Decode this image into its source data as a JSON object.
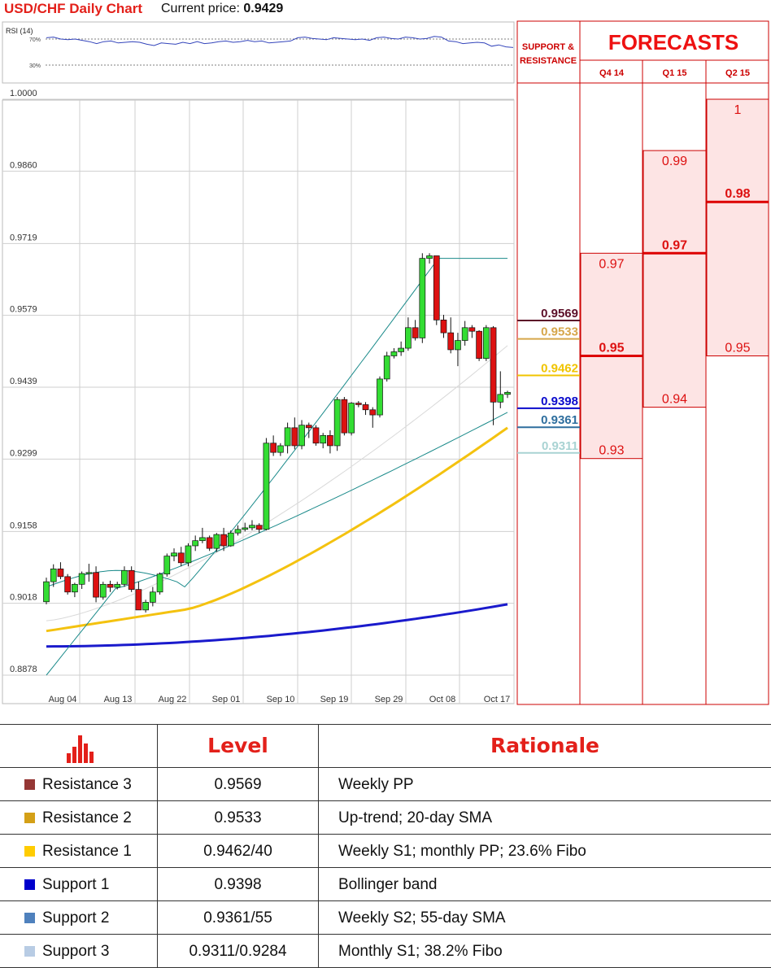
{
  "header": {
    "title": "USD/CHF Daily Chart",
    "price_label": "Current price:",
    "price_value": "0.9429"
  },
  "rsi": {
    "label": "RSI (14)",
    "level_high": "70%",
    "level_low": "30%"
  },
  "chart_data": {
    "type": "candlestick",
    "y_tick_labels": [
      "1.0000",
      "0.9860",
      "0.9719",
      "0.9579",
      "0.9439",
      "0.9299",
      "0.9158",
      "0.9018",
      "0.8878"
    ],
    "x_tick_labels": [
      "Aug 04",
      "Aug 13",
      "Aug 22",
      "Sep 01",
      "Sep 10",
      "Sep 19",
      "Sep 29",
      "Oct 08",
      "Oct 17"
    ],
    "ylim": [
      0.8878,
      1.0
    ],
    "grid": true,
    "candles": [
      [
        0.9021,
        0.9068,
        0.9016,
        0.906
      ],
      [
        0.906,
        0.9094,
        0.905,
        0.9085
      ],
      [
        0.9085,
        0.9098,
        0.9065,
        0.907
      ],
      [
        0.907,
        0.9075,
        0.9035,
        0.904
      ],
      [
        0.904,
        0.9058,
        0.903,
        0.9055
      ],
      [
        0.9055,
        0.908,
        0.9046,
        0.9076
      ],
      [
        0.9076,
        0.9095,
        0.906,
        0.9078
      ],
      [
        0.9078,
        0.909,
        0.902,
        0.903
      ],
      [
        0.903,
        0.906,
        0.9025,
        0.9055
      ],
      [
        0.9055,
        0.9062,
        0.904,
        0.9049
      ],
      [
        0.9049,
        0.906,
        0.9045,
        0.9055
      ],
      [
        0.9055,
        0.909,
        0.905,
        0.9082
      ],
      [
        0.9082,
        0.909,
        0.904,
        0.9045
      ],
      [
        0.9045,
        0.906,
        0.9015,
        0.9005
      ],
      [
        0.9005,
        0.9025,
        0.9,
        0.902
      ],
      [
        0.902,
        0.905,
        0.9012,
        0.904
      ],
      [
        0.904,
        0.9078,
        0.9035,
        0.9075
      ],
      [
        0.9075,
        0.9115,
        0.907,
        0.911
      ],
      [
        0.911,
        0.9125,
        0.91,
        0.9116
      ],
      [
        0.9116,
        0.9128,
        0.909,
        0.9097
      ],
      [
        0.9097,
        0.9135,
        0.909,
        0.913
      ],
      [
        0.913,
        0.915,
        0.912,
        0.914
      ],
      [
        0.914,
        0.9165,
        0.9135,
        0.9146
      ],
      [
        0.9146,
        0.915,
        0.912,
        0.9125
      ],
      [
        0.9125,
        0.9155,
        0.9118,
        0.9152
      ],
      [
        0.9152,
        0.9165,
        0.912,
        0.913
      ],
      [
        0.913,
        0.916,
        0.9128,
        0.9155
      ],
      [
        0.9155,
        0.917,
        0.915,
        0.9162
      ],
      [
        0.9162,
        0.9175,
        0.9158,
        0.9165
      ],
      [
        0.9165,
        0.918,
        0.916,
        0.917
      ],
      [
        0.917,
        0.9174,
        0.9155,
        0.9162
      ],
      [
        0.9162,
        0.934,
        0.916,
        0.933
      ],
      [
        0.933,
        0.9345,
        0.9305,
        0.9312
      ],
      [
        0.9312,
        0.933,
        0.9305,
        0.9325
      ],
      [
        0.9325,
        0.937,
        0.931,
        0.936
      ],
      [
        0.936,
        0.938,
        0.9318,
        0.9325
      ],
      [
        0.9325,
        0.9375,
        0.9318,
        0.9365
      ],
      [
        0.9365,
        0.937,
        0.934,
        0.936
      ],
      [
        0.936,
        0.9365,
        0.9325,
        0.933
      ],
      [
        0.933,
        0.935,
        0.932,
        0.9345
      ],
      [
        0.9345,
        0.9355,
        0.931,
        0.9325
      ],
      [
        0.9325,
        0.942,
        0.9315,
        0.9415
      ],
      [
        0.9415,
        0.942,
        0.9345,
        0.935
      ],
      [
        0.935,
        0.941,
        0.9345,
        0.9408
      ],
      [
        0.9408,
        0.9412,
        0.94,
        0.9405
      ],
      [
        0.9405,
        0.941,
        0.9385,
        0.9395
      ],
      [
        0.9395,
        0.94,
        0.936,
        0.9385
      ],
      [
        0.9385,
        0.946,
        0.938,
        0.9455
      ],
      [
        0.9455,
        0.9508,
        0.945,
        0.95
      ],
      [
        0.95,
        0.9515,
        0.9495,
        0.9508
      ],
      [
        0.9508,
        0.9528,
        0.95,
        0.9515
      ],
      [
        0.9515,
        0.9575,
        0.951,
        0.9555
      ],
      [
        0.9555,
        0.957,
        0.953,
        0.9535
      ],
      [
        0.9535,
        0.97,
        0.9525,
        0.969
      ],
      [
        0.969,
        0.97,
        0.968,
        0.9695
      ],
      [
        0.9695,
        0.9695,
        0.956,
        0.957
      ],
      [
        0.957,
        0.958,
        0.9535,
        0.9545
      ],
      [
        0.9545,
        0.9575,
        0.9505,
        0.9512
      ],
      [
        0.9512,
        0.9545,
        0.948,
        0.953
      ],
      [
        0.953,
        0.9568,
        0.952,
        0.9555
      ],
      [
        0.9555,
        0.956,
        0.9535,
        0.9548
      ],
      [
        0.9548,
        0.955,
        0.949,
        0.9495
      ],
      [
        0.9495,
        0.956,
        0.949,
        0.9555
      ],
      [
        0.9555,
        0.9558,
        0.9365,
        0.941
      ],
      [
        0.941,
        0.947,
        0.9398,
        0.9425
      ],
      [
        0.9425,
        0.9432,
        0.9418,
        0.9429
      ]
    ],
    "indicators": [
      {
        "name": "SMA 200",
        "color": "#1a1acc",
        "y_start": 0.8934,
        "y_end": 0.9016
      },
      {
        "name": "SMA 55",
        "color": "#f4c20f",
        "y_start": 0.8964,
        "y_end": 0.936
      },
      {
        "name": "SMA 20",
        "color": "#d9d9d9",
        "y_start": 0.8984,
        "y_end": 0.952
      },
      {
        "name": "Bollinger upper",
        "color": "#1a8a8a",
        "y_start": 0.905,
        "y_end": 0.969
      },
      {
        "name": "Bollinger lower",
        "color": "#1a8a8a",
        "y_start": 0.8878,
        "y_end": 0.939
      }
    ],
    "support_resistance": [
      {
        "value": "0.9569",
        "color": "#5c0f28"
      },
      {
        "value": "0.9533",
        "color": "#d6a64a"
      },
      {
        "value": "0.9462",
        "color": "#f0c400"
      },
      {
        "value": "0.9398",
        "color": "#0a0acc"
      },
      {
        "value": "0.9361",
        "color": "#2e6e9e"
      },
      {
        "value": "0.9311",
        "color": "#a9d3d3"
      }
    ]
  },
  "rsi_data": [
    72,
    73,
    70,
    69,
    70,
    68,
    66,
    63,
    66,
    67,
    64,
    65,
    66,
    65,
    62,
    60,
    64,
    63,
    62,
    65,
    63,
    66,
    63,
    64,
    66,
    67,
    65,
    66,
    68,
    66,
    67,
    64,
    65,
    66,
    67,
    72,
    73,
    71,
    70,
    69,
    72,
    71,
    70,
    69,
    70,
    68,
    72,
    73,
    71,
    70,
    73,
    72,
    70,
    71,
    74,
    73,
    67,
    66,
    63,
    64,
    65,
    64,
    59,
    61,
    58,
    57
  ],
  "forecasts": {
    "sr_header_line1": "SUPPORT &",
    "sr_header_line2": "RESISTANCE",
    "title": "FORECASTS",
    "columns": [
      {
        "label": "Q4 14",
        "high": "0.97",
        "mid": "0.95",
        "low": "0.93"
      },
      {
        "label": "Q1 15",
        "high": "0.99",
        "mid": "0.97",
        "low": "0.94"
      },
      {
        "label": "Q2 15",
        "high": "1",
        "mid": "0.98",
        "low": "0.95"
      }
    ]
  },
  "table": {
    "icon": "bar-chart-icon",
    "header_level": "Level",
    "header_rationale": "Rationale",
    "rows": [
      {
        "label": "Resistance 3",
        "color": "#953735",
        "level": "0.9569",
        "rationale": "Weekly PP"
      },
      {
        "label": "Resistance 2",
        "color": "#d4a017",
        "level": "0.9533",
        "rationale": "Up-trend; 20-day SMA"
      },
      {
        "label": "Resistance 1",
        "color": "#ffcc00",
        "level": "0.9462/40",
        "rationale": "Weekly S1; monthly PP; 23.6% Fibo"
      },
      {
        "label": "Support 1",
        "color": "#0000cc",
        "level": "0.9398",
        "rationale": "Bollinger band"
      },
      {
        "label": "Support 2",
        "color": "#4f81bd",
        "level": "0.9361/55",
        "rationale": "Weekly S2; 55-day SMA"
      },
      {
        "label": "Support 3",
        "color": "#b8cce4",
        "level": "0.9311/0.9284",
        "rationale": "Monthly S1; 38.2% Fibo"
      }
    ]
  }
}
